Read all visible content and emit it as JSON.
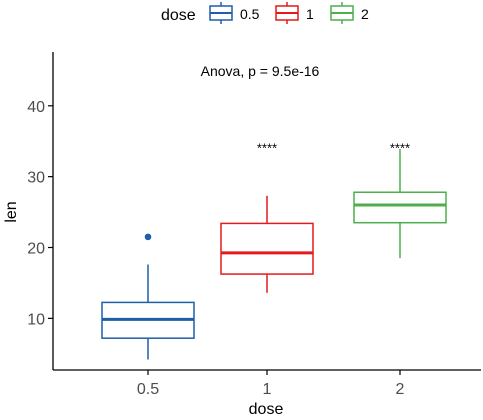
{
  "chart_data": {
    "type": "box",
    "title": "",
    "xlabel": "dose",
    "ylabel": "len",
    "ylim": [
      2,
      47
    ],
    "yticks": [
      10,
      20,
      30,
      40
    ],
    "categories": [
      "0.5",
      "1",
      "2"
    ],
    "legend": {
      "title": "dose",
      "position": "top",
      "entries": [
        {
          "label": "0.5",
          "color": "#1f5ea8"
        },
        {
          "label": "1",
          "color": "#e41a1c"
        },
        {
          "label": "2",
          "color": "#4daf4a"
        }
      ]
    },
    "annotation": "Anova, p = 9.5e-16",
    "series": [
      {
        "name": "0.5",
        "color": "#1f5ea8",
        "whisker_low": 4.2,
        "q1": 7.2,
        "median": 9.85,
        "q3": 12.25,
        "whisker_high": 17.6,
        "outliers": [
          21.5
        ],
        "significance": ""
      },
      {
        "name": "1",
        "color": "#e41a1c",
        "whisker_low": 13.6,
        "q1": 16.25,
        "median": 19.25,
        "q3": 23.4,
        "whisker_high": 27.3,
        "outliers": [],
        "significance": "****"
      },
      {
        "name": "2",
        "color": "#4daf4a",
        "whisker_low": 18.5,
        "q1": 23.5,
        "median": 26.0,
        "q3": 27.8,
        "whisker_high": 33.9,
        "outliers": [],
        "significance": "****"
      }
    ]
  }
}
